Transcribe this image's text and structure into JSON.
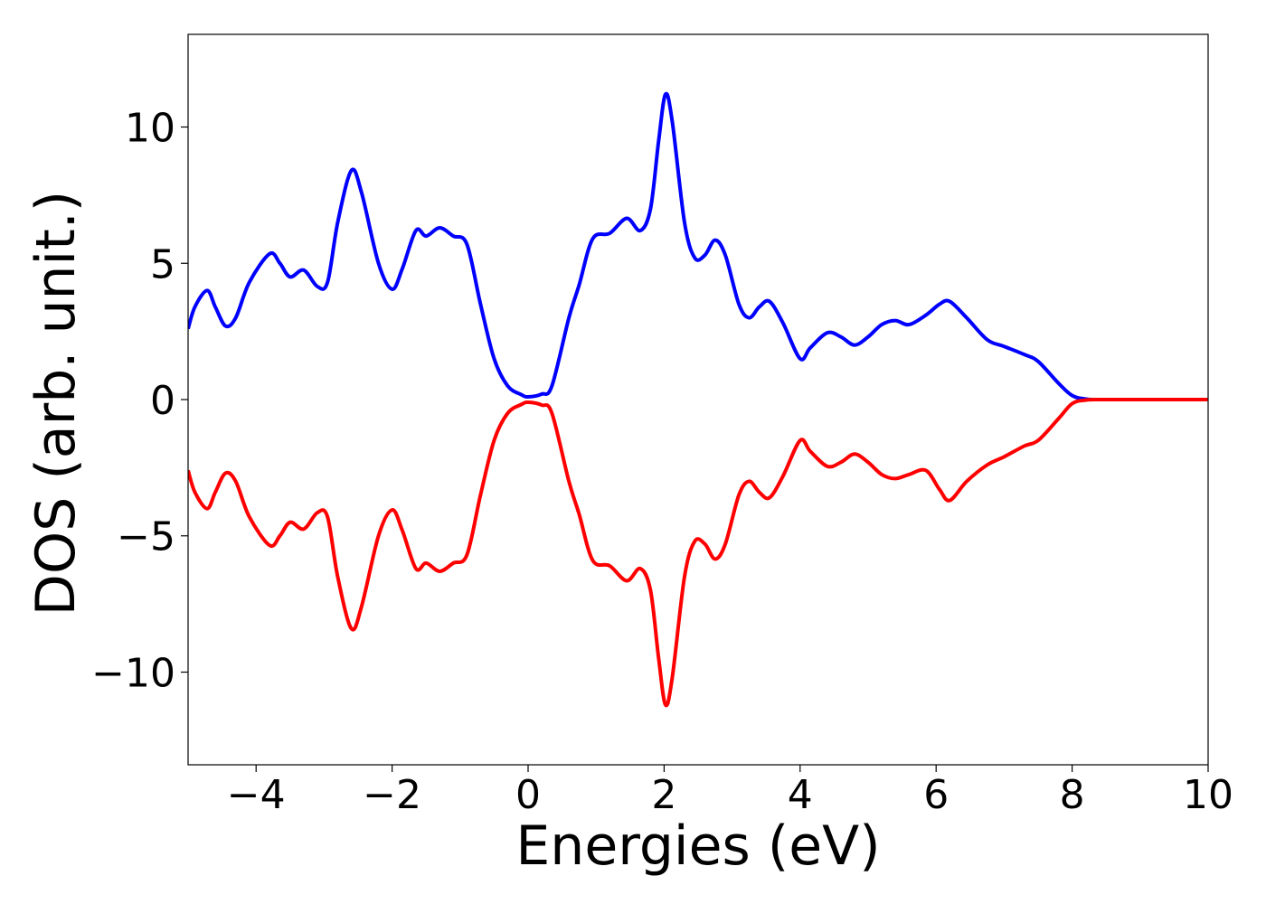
{
  "chart_data": {
    "type": "line",
    "title": "",
    "xlabel": "Energies (eV)",
    "ylabel": "DOS (arb. unit.)",
    "xlim": [
      -5,
      10
    ],
    "ylim": [
      -13.4,
      13.4
    ],
    "grid": false,
    "legend": "none",
    "x_ticks": [
      -4,
      -2,
      0,
      2,
      4,
      6,
      8,
      10
    ],
    "x_tick_labels": [
      "−4",
      "−2",
      "0",
      "2",
      "4",
      "6",
      "8",
      "10"
    ],
    "y_ticks": [
      -10,
      -5,
      0,
      5,
      10
    ],
    "y_tick_labels": [
      "−10",
      "−5",
      "0",
      "5",
      "10"
    ],
    "series": [
      {
        "color": "#0000ff",
        "points": [
          [
            -5.0,
            2.6
          ],
          [
            -4.9,
            3.4
          ],
          [
            -4.72,
            4.0
          ],
          [
            -4.6,
            3.4
          ],
          [
            -4.45,
            2.7
          ],
          [
            -4.3,
            3.0
          ],
          [
            -4.1,
            4.3
          ],
          [
            -3.8,
            5.35
          ],
          [
            -3.65,
            5.0
          ],
          [
            -3.5,
            4.5
          ],
          [
            -3.3,
            4.75
          ],
          [
            -3.1,
            4.15
          ],
          [
            -2.95,
            4.3
          ],
          [
            -2.8,
            6.5
          ],
          [
            -2.6,
            8.4
          ],
          [
            -2.45,
            7.6
          ],
          [
            -2.2,
            5.0
          ],
          [
            -2.0,
            4.05
          ],
          [
            -1.85,
            4.8
          ],
          [
            -1.65,
            6.2
          ],
          [
            -1.5,
            6.0
          ],
          [
            -1.3,
            6.3
          ],
          [
            -1.1,
            6.0
          ],
          [
            -0.9,
            5.7
          ],
          [
            -0.7,
            3.5
          ],
          [
            -0.5,
            1.5
          ],
          [
            -0.3,
            0.5
          ],
          [
            -0.1,
            0.18
          ],
          [
            0.0,
            0.1
          ],
          [
            0.2,
            0.2
          ],
          [
            0.35,
            0.5
          ],
          [
            0.6,
            3.0
          ],
          [
            0.75,
            4.2
          ],
          [
            0.95,
            5.9
          ],
          [
            1.2,
            6.1
          ],
          [
            1.45,
            6.65
          ],
          [
            1.65,
            6.2
          ],
          [
            1.8,
            7.0
          ],
          [
            1.92,
            9.5
          ],
          [
            2.02,
            11.2
          ],
          [
            2.12,
            10.2
          ],
          [
            2.3,
            6.5
          ],
          [
            2.45,
            5.2
          ],
          [
            2.6,
            5.3
          ],
          [
            2.75,
            5.85
          ],
          [
            2.9,
            5.3
          ],
          [
            3.1,
            3.5
          ],
          [
            3.25,
            3.0
          ],
          [
            3.4,
            3.4
          ],
          [
            3.55,
            3.6
          ],
          [
            3.75,
            2.8
          ],
          [
            4.0,
            1.5
          ],
          [
            4.15,
            1.9
          ],
          [
            4.4,
            2.45
          ],
          [
            4.6,
            2.3
          ],
          [
            4.8,
            2.0
          ],
          [
            5.0,
            2.3
          ],
          [
            5.2,
            2.75
          ],
          [
            5.4,
            2.9
          ],
          [
            5.6,
            2.75
          ],
          [
            5.85,
            3.1
          ],
          [
            6.05,
            3.5
          ],
          [
            6.2,
            3.6
          ],
          [
            6.45,
            3.0
          ],
          [
            6.75,
            2.2
          ],
          [
            7.0,
            1.95
          ],
          [
            7.3,
            1.65
          ],
          [
            7.5,
            1.4
          ],
          [
            7.8,
            0.6
          ],
          [
            8.0,
            0.15
          ],
          [
            8.2,
            0.02
          ],
          [
            8.5,
            0.0
          ],
          [
            10.0,
            0.0
          ]
        ]
      },
      {
        "color": "#ff0000",
        "points": [
          [
            -5.0,
            -2.6
          ],
          [
            -4.9,
            -3.4
          ],
          [
            -4.72,
            -4.0
          ],
          [
            -4.6,
            -3.4
          ],
          [
            -4.45,
            -2.7
          ],
          [
            -4.3,
            -3.0
          ],
          [
            -4.1,
            -4.3
          ],
          [
            -3.8,
            -5.35
          ],
          [
            -3.65,
            -5.0
          ],
          [
            -3.5,
            -4.5
          ],
          [
            -3.3,
            -4.75
          ],
          [
            -3.1,
            -4.15
          ],
          [
            -2.95,
            -4.3
          ],
          [
            -2.8,
            -6.5
          ],
          [
            -2.6,
            -8.4
          ],
          [
            -2.45,
            -7.6
          ],
          [
            -2.2,
            -5.0
          ],
          [
            -2.0,
            -4.05
          ],
          [
            -1.85,
            -4.8
          ],
          [
            -1.65,
            -6.2
          ],
          [
            -1.5,
            -6.0
          ],
          [
            -1.3,
            -6.3
          ],
          [
            -1.1,
            -6.0
          ],
          [
            -0.9,
            -5.7
          ],
          [
            -0.7,
            -3.5
          ],
          [
            -0.5,
            -1.5
          ],
          [
            -0.3,
            -0.5
          ],
          [
            -0.1,
            -0.18
          ],
          [
            0.0,
            -0.1
          ],
          [
            0.2,
            -0.2
          ],
          [
            0.35,
            -0.5
          ],
          [
            0.6,
            -3.0
          ],
          [
            0.75,
            -4.2
          ],
          [
            0.95,
            -5.9
          ],
          [
            1.2,
            -6.1
          ],
          [
            1.45,
            -6.65
          ],
          [
            1.65,
            -6.2
          ],
          [
            1.8,
            -7.0
          ],
          [
            1.92,
            -9.5
          ],
          [
            2.02,
            -11.2
          ],
          [
            2.12,
            -10.2
          ],
          [
            2.3,
            -6.5
          ],
          [
            2.45,
            -5.2
          ],
          [
            2.6,
            -5.3
          ],
          [
            2.75,
            -5.85
          ],
          [
            2.9,
            -5.3
          ],
          [
            3.1,
            -3.5
          ],
          [
            3.25,
            -3.0
          ],
          [
            3.4,
            -3.4
          ],
          [
            3.55,
            -3.6
          ],
          [
            3.75,
            -2.8
          ],
          [
            4.0,
            -1.5
          ],
          [
            4.15,
            -1.9
          ],
          [
            4.4,
            -2.45
          ],
          [
            4.6,
            -2.3
          ],
          [
            4.8,
            -2.0
          ],
          [
            5.0,
            -2.3
          ],
          [
            5.2,
            -2.75
          ],
          [
            5.4,
            -2.9
          ],
          [
            5.6,
            -2.75
          ],
          [
            5.85,
            -2.6
          ],
          [
            6.05,
            -3.3
          ],
          [
            6.2,
            -3.7
          ],
          [
            6.45,
            -3.0
          ],
          [
            6.75,
            -2.4
          ],
          [
            7.0,
            -2.1
          ],
          [
            7.3,
            -1.7
          ],
          [
            7.5,
            -1.5
          ],
          [
            7.8,
            -0.7
          ],
          [
            8.0,
            -0.15
          ],
          [
            8.2,
            -0.02
          ],
          [
            8.5,
            0.0
          ],
          [
            10.0,
            0.0
          ]
        ]
      }
    ]
  }
}
